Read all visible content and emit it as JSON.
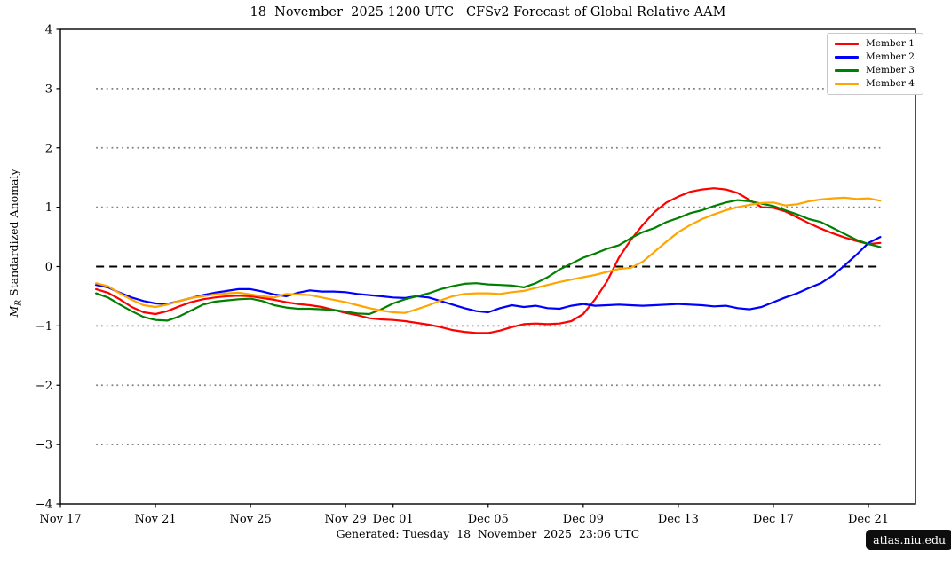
{
  "header": {
    "title": "18  November  2025 1200 UTC   CFSv2 Forecast of Global Relative AAM"
  },
  "footer": {
    "generated": "Generated: Tuesday  18  November  2025  23:06 UTC",
    "site_badge": "atlas.niu.edu"
  },
  "ylabel_parts": {
    "italic": "M",
    "sub": "R",
    "rest": " Standardized Anomaly"
  },
  "chart_data": {
    "type": "line",
    "title": "18  November  2025 1200 UTC   CFSv2 Forecast of Global Relative AAM",
    "xlabel": "",
    "ylabel": "M_R Standardized Anomaly",
    "ylim": [
      -4,
      4
    ],
    "x_range_days_after_nov17": [
      0,
      36
    ],
    "grid": "dotted horizontal lines at -3,-2,-1,1,2,3; black dashed line at 0",
    "legend_position": "upper right",
    "colors": {
      "grid": "#808080",
      "zero_line": "#000000",
      "frame": "#000000"
    },
    "x_ticks": [
      {
        "d": 0,
        "label": "Nov 17"
      },
      {
        "d": 4,
        "label": "Nov 21"
      },
      {
        "d": 8,
        "label": "Nov 25"
      },
      {
        "d": 12,
        "label": "Nov 29"
      },
      {
        "d": 14,
        "label": "Dec 01"
      },
      {
        "d": 18,
        "label": "Dec 05"
      },
      {
        "d": 22,
        "label": "Dec 09"
      },
      {
        "d": 26,
        "label": "Dec 13"
      },
      {
        "d": 30,
        "label": "Dec 17"
      },
      {
        "d": 34,
        "label": "Dec 21"
      }
    ],
    "y_ticks": [
      {
        "v": 4,
        "label": "4"
      },
      {
        "v": 3,
        "label": "3"
      },
      {
        "v": 2,
        "label": "2"
      },
      {
        "v": 1,
        "label": "1"
      },
      {
        "v": 0,
        "label": "0"
      },
      {
        "v": -1,
        "label": "−1"
      },
      {
        "v": -2,
        "label": "−2"
      },
      {
        "v": -3,
        "label": "−3"
      },
      {
        "v": -4,
        "label": "−4"
      }
    ],
    "reference_lines": {
      "dotted_values": [
        3,
        2,
        1,
        -1,
        -2,
        -3
      ],
      "zero_dashed": true,
      "span_days": [
        1.5,
        34.5
      ]
    },
    "x_days": [
      1.5,
      2,
      2.5,
      3,
      3.5,
      4,
      4.5,
      5,
      5.5,
      6,
      6.5,
      7,
      7.5,
      8,
      8.5,
      9,
      9.5,
      10,
      10.5,
      11,
      11.5,
      12,
      12.5,
      13,
      13.5,
      14,
      14.5,
      15,
      15.5,
      16,
      16.5,
      17,
      17.5,
      18,
      18.5,
      19,
      19.5,
      20,
      20.5,
      21,
      21.5,
      22,
      22.5,
      23,
      23.5,
      24,
      24.5,
      25,
      25.5,
      26,
      26.5,
      27,
      27.5,
      28,
      28.5,
      29,
      29.5,
      30,
      30.5,
      31,
      31.5,
      32,
      32.5,
      33,
      33.5,
      34,
      34.5
    ],
    "series": [
      {
        "name": "Member 1",
        "color": "#ff0000",
        "values": [
          -0.38,
          -0.44,
          -0.55,
          -0.68,
          -0.77,
          -0.8,
          -0.75,
          -0.67,
          -0.6,
          -0.55,
          -0.52,
          -0.5,
          -0.49,
          -0.5,
          -0.53,
          -0.56,
          -0.6,
          -0.63,
          -0.65,
          -0.68,
          -0.73,
          -0.78,
          -0.82,
          -0.87,
          -0.89,
          -0.9,
          -0.92,
          -0.95,
          -0.98,
          -1.02,
          -1.07,
          -1.1,
          -1.12,
          -1.12,
          -1.08,
          -1.02,
          -0.97,
          -0.96,
          -0.97,
          -0.96,
          -0.92,
          -0.8,
          -0.55,
          -0.25,
          0.15,
          0.45,
          0.7,
          0.92,
          1.08,
          1.18,
          1.26,
          1.3,
          1.32,
          1.3,
          1.24,
          1.12,
          1.0,
          0.99,
          0.93,
          0.83,
          0.73,
          0.64,
          0.56,
          0.49,
          0.43,
          0.38,
          0.4
        ]
      },
      {
        "name": "Member 2",
        "color": "#0000ff",
        "values": [
          -0.31,
          -0.35,
          -0.44,
          -0.52,
          -0.58,
          -0.62,
          -0.63,
          -0.58,
          -0.53,
          -0.48,
          -0.44,
          -0.41,
          -0.38,
          -0.38,
          -0.42,
          -0.47,
          -0.5,
          -0.44,
          -0.4,
          -0.42,
          -0.42,
          -0.43,
          -0.46,
          -0.48,
          -0.5,
          -0.52,
          -0.53,
          -0.5,
          -0.52,
          -0.58,
          -0.64,
          -0.7,
          -0.75,
          -0.77,
          -0.7,
          -0.65,
          -0.68,
          -0.66,
          -0.7,
          -0.71,
          -0.66,
          -0.63,
          -0.66,
          -0.65,
          -0.64,
          -0.65,
          -0.66,
          -0.65,
          -0.64,
          -0.63,
          -0.64,
          -0.65,
          -0.67,
          -0.66,
          -0.7,
          -0.72,
          -0.68,
          -0.6,
          -0.52,
          -0.45,
          -0.36,
          -0.28,
          -0.15,
          0.02,
          0.2,
          0.4,
          0.5
        ]
      },
      {
        "name": "Member 3",
        "color": "#008000",
        "values": [
          -0.45,
          -0.52,
          -0.64,
          -0.75,
          -0.85,
          -0.9,
          -0.91,
          -0.84,
          -0.74,
          -0.64,
          -0.59,
          -0.57,
          -0.55,
          -0.54,
          -0.58,
          -0.65,
          -0.69,
          -0.71,
          -0.71,
          -0.72,
          -0.73,
          -0.76,
          -0.79,
          -0.8,
          -0.72,
          -0.62,
          -0.55,
          -0.5,
          -0.45,
          -0.38,
          -0.33,
          -0.29,
          -0.28,
          -0.3,
          -0.31,
          -0.32,
          -0.35,
          -0.28,
          -0.18,
          -0.05,
          0.05,
          0.15,
          0.22,
          0.3,
          0.36,
          0.48,
          0.58,
          0.65,
          0.75,
          0.82,
          0.9,
          0.95,
          1.02,
          1.08,
          1.12,
          1.1,
          1.06,
          1.02,
          0.95,
          0.88,
          0.8,
          0.75,
          0.65,
          0.55,
          0.45,
          0.38,
          0.33
        ]
      },
      {
        "name": "Member 4",
        "color": "#ffa500",
        "values": [
          -0.28,
          -0.33,
          -0.45,
          -0.56,
          -0.65,
          -0.68,
          -0.64,
          -0.58,
          -0.53,
          -0.5,
          -0.47,
          -0.45,
          -0.44,
          -0.47,
          -0.5,
          -0.52,
          -0.46,
          -0.47,
          -0.48,
          -0.52,
          -0.56,
          -0.6,
          -0.65,
          -0.7,
          -0.74,
          -0.77,
          -0.78,
          -0.72,
          -0.65,
          -0.57,
          -0.5,
          -0.46,
          -0.45,
          -0.45,
          -0.46,
          -0.43,
          -0.41,
          -0.36,
          -0.31,
          -0.26,
          -0.22,
          -0.18,
          -0.14,
          -0.09,
          -0.04,
          -0.02,
          0.08,
          0.25,
          0.42,
          0.58,
          0.7,
          0.8,
          0.88,
          0.95,
          1.0,
          1.04,
          1.07,
          1.08,
          1.03,
          1.05,
          1.1,
          1.13,
          1.15,
          1.16,
          1.14,
          1.15,
          1.11
        ]
      }
    ],
    "legend": {
      "entries": [
        {
          "label": "Member 1",
          "color": "#ff0000"
        },
        {
          "label": "Member 2",
          "color": "#0000ff"
        },
        {
          "label": "Member 3",
          "color": "#008000"
        },
        {
          "label": "Member 4",
          "color": "#ffa500"
        }
      ]
    }
  }
}
